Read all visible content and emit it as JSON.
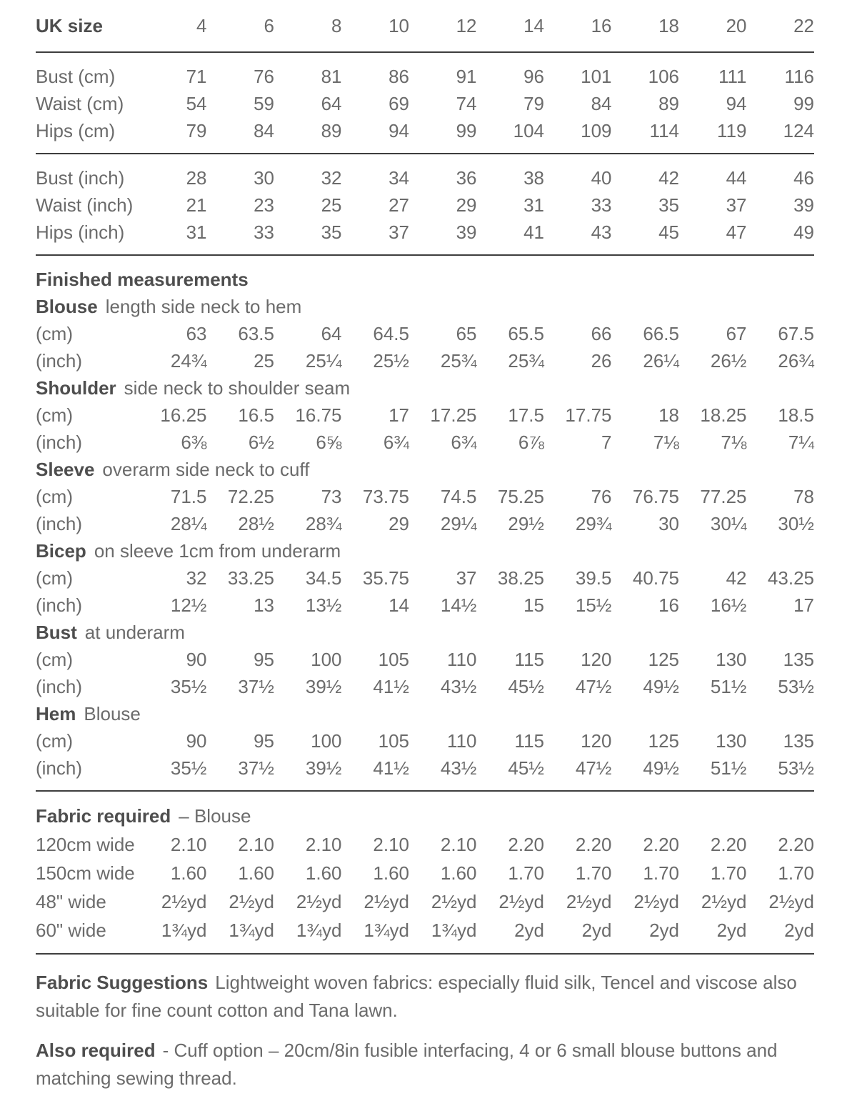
{
  "page": {
    "background_color": "#ffffff",
    "text_color": "#6b6b6b",
    "heading_color": "#4e4e4e",
    "rule_color": "#3e3e3e"
  },
  "size_table": {
    "header_label": "UK size",
    "sizes": [
      "4",
      "6",
      "8",
      "10",
      "12",
      "14",
      "16",
      "18",
      "20",
      "22"
    ],
    "cm_rows": [
      {
        "label": "Bust (cm)",
        "values": [
          "71",
          "76",
          "81",
          "86",
          "91",
          "96",
          "101",
          "106",
          "111",
          "116"
        ]
      },
      {
        "label": "Waist (cm)",
        "values": [
          "54",
          "59",
          "64",
          "69",
          "74",
          "79",
          "84",
          "89",
          "94",
          "99"
        ]
      },
      {
        "label": "Hips (cm)",
        "values": [
          "79",
          "84",
          "89",
          "94",
          "99",
          "104",
          "109",
          "114",
          "119",
          "124"
        ]
      }
    ],
    "inch_rows": [
      {
        "label": "Bust (inch)",
        "values": [
          "28",
          "30",
          "32",
          "34",
          "36",
          "38",
          "40",
          "42",
          "44",
          "46"
        ]
      },
      {
        "label": "Waist (inch)",
        "values": [
          "21",
          "23",
          "25",
          "27",
          "29",
          "31",
          "33",
          "35",
          "37",
          "39"
        ]
      },
      {
        "label": "Hips (inch)",
        "values": [
          "31",
          "33",
          "35",
          "37",
          "39",
          "41",
          "43",
          "45",
          "47",
          "49"
        ]
      }
    ]
  },
  "finished_measurements": {
    "title": "Finished measurements",
    "cm_label": "(cm)",
    "inch_label": "(inch)",
    "sections": [
      {
        "name": "Blouse",
        "description": "length side neck to hem",
        "cm": [
          "63",
          "63.5",
          "64",
          "64.5",
          "65",
          "65.5",
          "66",
          "66.5",
          "67",
          "67.5"
        ],
        "inch": [
          "24¾",
          "25",
          "25¼",
          "25½",
          "25¾",
          "25¾",
          "26",
          "26¼",
          "26½",
          "26¾"
        ]
      },
      {
        "name": "Shoulder",
        "description": "side neck to shoulder seam",
        "cm": [
          "16.25",
          "16.5",
          "16.75",
          "17",
          "17.25",
          "17.5",
          "17.75",
          "18",
          "18.25",
          "18.5"
        ],
        "inch": [
          "6⅜",
          "6½",
          "6⅝",
          "6¾",
          "6¾",
          "6⅞",
          "7",
          "7⅛",
          "7⅛",
          "7¼"
        ]
      },
      {
        "name": "Sleeve",
        "description": "overarm side neck to cuff",
        "cm": [
          "71.5",
          "72.25",
          "73",
          "73.75",
          "74.5",
          "75.25",
          "76",
          "76.75",
          "77.25",
          "78"
        ],
        "inch": [
          "28¼",
          "28½",
          "28¾",
          "29",
          "29¼",
          "29½",
          "29¾",
          "30",
          "30¼",
          "30½"
        ]
      },
      {
        "name": "Bicep",
        "description": "on sleeve 1cm from underarm",
        "cm": [
          "32",
          "33.25",
          "34.5",
          "35.75",
          "37",
          "38.25",
          "39.5",
          "40.75",
          "42",
          "43.25"
        ],
        "inch": [
          "12½",
          "13",
          "13½",
          "14",
          "14½",
          "15",
          "15½",
          "16",
          "16½",
          "17"
        ]
      },
      {
        "name": "Bust",
        "description": "at underarm",
        "cm": [
          "90",
          "95",
          "100",
          "105",
          "110",
          "115",
          "120",
          "125",
          "130",
          "135"
        ],
        "inch": [
          "35½",
          "37½",
          "39½",
          "41½",
          "43½",
          "45½",
          "47½",
          "49½",
          "51½",
          "53½"
        ]
      },
      {
        "name": "Hem",
        "description": "Blouse",
        "cm": [
          "90",
          "95",
          "100",
          "105",
          "110",
          "115",
          "120",
          "125",
          "130",
          "135"
        ],
        "inch": [
          "35½",
          "37½",
          "39½",
          "41½",
          "43½",
          "45½",
          "47½",
          "49½",
          "51½",
          "53½"
        ]
      }
    ]
  },
  "fabric_required": {
    "title": "Fabric required",
    "title_suffix": "– Blouse",
    "rows": [
      {
        "label": "120cm wide",
        "values": [
          "2.10",
          "2.10",
          "2.10",
          "2.10",
          "2.10",
          "2.20",
          "2.20",
          "2.20",
          "2.20",
          "2.20"
        ]
      },
      {
        "label": "150cm wide",
        "values": [
          "1.60",
          "1.60",
          "1.60",
          "1.60",
          "1.60",
          "1.70",
          "1.70",
          "1.70",
          "1.70",
          "1.70"
        ]
      },
      {
        "label": "48\" wide",
        "values": [
          "2½yd",
          "2½yd",
          "2½yd",
          "2½yd",
          "2½yd",
          "2½yd",
          "2½yd",
          "2½yd",
          "2½yd",
          "2½yd"
        ]
      },
      {
        "label": "60\" wide",
        "values": [
          "1¾yd",
          "1¾yd",
          "1¾yd",
          "1¾yd",
          "1¾yd",
          "2yd",
          "2yd",
          "2yd",
          "2yd",
          "2yd"
        ]
      }
    ]
  },
  "notes": [
    {
      "heading": "Fabric Suggestions",
      "text": "Lightweight woven fabrics: especially fluid silk, Tencel and viscose also suitable for fine count cotton and Tana lawn."
    },
    {
      "heading": "Also required",
      "text": "- Cuff option – 20cm/8in fusible interfacing, 4 or 6 small blouse buttons and matching sewing thread."
    }
  ]
}
